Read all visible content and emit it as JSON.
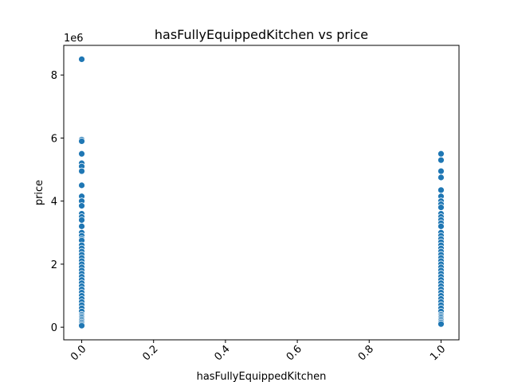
{
  "chart_data": {
    "type": "scatter",
    "title": "hasFullyEquippedKitchen vs price",
    "x_label": "hasFullyEquippedKitchen",
    "y_label": "price",
    "y_offset_label": "1e6",
    "color": "#1f77b4",
    "x": [
      0,
      0,
      0,
      0,
      0,
      0,
      0,
      0,
      0,
      0,
      0,
      0,
      0,
      0,
      0,
      0,
      0,
      0,
      0,
      0,
      0,
      0,
      0,
      0,
      0,
      0,
      0,
      0,
      0,
      0,
      0,
      0,
      0,
      0,
      0,
      0,
      0,
      0,
      0,
      0,
      0,
      0,
      0,
      0,
      0,
      0,
      0,
      0,
      0,
      1,
      1,
      1,
      1,
      1,
      1,
      1,
      1,
      1,
      1,
      1,
      1,
      1,
      1,
      1,
      1,
      1,
      1,
      1,
      1,
      1,
      1,
      1,
      1,
      1,
      1,
      1,
      1,
      1,
      1,
      1,
      1,
      1,
      1,
      1,
      1,
      1,
      1,
      1,
      1,
      1,
      1,
      1,
      1,
      1,
      1,
      1
    ],
    "y": [
      8.5,
      5.95,
      5.9,
      5.5,
      5.2,
      5.1,
      4.95,
      4.5,
      4.15,
      4.0,
      3.85,
      3.6,
      3.5,
      3.4,
      3.2,
      3.0,
      2.9,
      2.8,
      2.75,
      2.6,
      2.5,
      2.4,
      2.3,
      2.2,
      2.1,
      2.0,
      1.9,
      1.8,
      1.7,
      1.6,
      1.5,
      1.4,
      1.3,
      1.2,
      1.1,
      1.0,
      0.9,
      0.8,
      0.7,
      0.6,
      0.5,
      0.4,
      0.35,
      0.3,
      0.25,
      0.2,
      0.15,
      0.1,
      0.05,
      5.5,
      5.3,
      4.95,
      4.75,
      4.35,
      4.15,
      4.0,
      3.9,
      3.8,
      3.6,
      3.5,
      3.4,
      3.3,
      3.2,
      3.0,
      2.9,
      2.8,
      2.7,
      2.6,
      2.5,
      2.4,
      2.3,
      2.2,
      2.1,
      2.0,
      1.9,
      1.8,
      1.7,
      1.6,
      1.5,
      1.4,
      1.3,
      1.2,
      1.1,
      1.0,
      0.9,
      0.8,
      0.7,
      0.6,
      0.5,
      0.4,
      0.35,
      0.3,
      0.25,
      0.2,
      0.15,
      0.1
    ],
    "xlim": [
      -0.05,
      1.05
    ],
    "xticks": [
      {
        "value": 0,
        "label": "0.0"
      },
      {
        "value": 0.2,
        "label": "0.2"
      },
      {
        "value": 0.4,
        "label": "0.4"
      },
      {
        "value": 0.6,
        "label": "0.6"
      },
      {
        "value": 0.8,
        "label": "0.8"
      },
      {
        "value": 1,
        "label": "1.0"
      }
    ],
    "ylim": [
      -0.4,
      8.94
    ],
    "yticks": [
      0,
      2,
      4,
      6,
      8
    ],
    "grid": false
  }
}
